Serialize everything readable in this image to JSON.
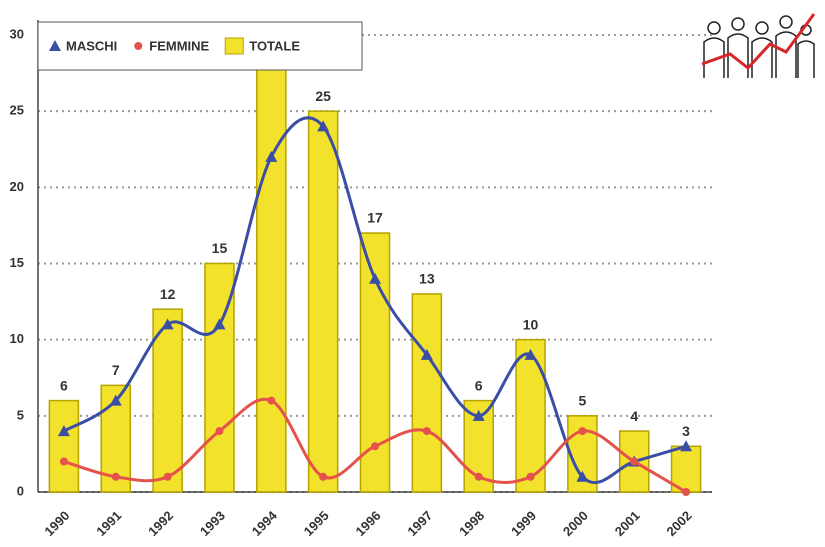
{
  "chart_data": {
    "type": "bar-line",
    "categories": [
      "1990",
      "1991",
      "1992",
      "1993",
      "1994",
      "1995",
      "1996",
      "1997",
      "1998",
      "1999",
      "2000",
      "2001",
      "2002"
    ],
    "series": [
      {
        "name": "MASCHI",
        "type": "line",
        "marker": "triangle",
        "color": "#3b4ea6",
        "values": [
          4,
          6,
          11,
          11,
          22,
          24,
          14,
          9,
          5,
          9,
          1,
          2,
          3
        ]
      },
      {
        "name": "FEMMINE",
        "type": "line",
        "marker": "circle",
        "color": "#e5524c",
        "values": [
          2,
          1,
          1,
          4,
          6,
          1,
          3,
          4,
          1,
          1,
          4,
          2,
          0
        ]
      },
      {
        "name": "TOTALE",
        "type": "bar",
        "color": "#f3e22c",
        "values": [
          6,
          7,
          12,
          15,
          28,
          25,
          17,
          13,
          6,
          10,
          5,
          4,
          3
        ],
        "value_labels": [
          "6",
          "7",
          "12",
          "15",
          null,
          "25",
          "17",
          "13",
          "6",
          "10",
          "5",
          "4",
          "3"
        ]
      }
    ],
    "ylim": [
      0,
      30
    ],
    "yticks": [
      0,
      5,
      10,
      15,
      20,
      25,
      30
    ],
    "grid": true
  }
}
